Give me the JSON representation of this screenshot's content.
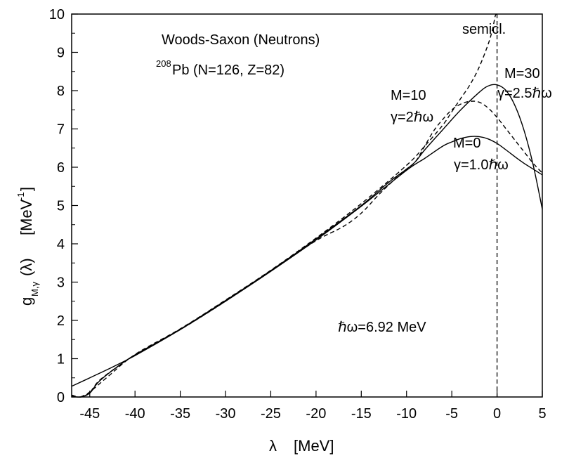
{
  "chart_data": {
    "type": "line",
    "xlabel_symbol": "λ",
    "xlabel_unit": "[MeV]",
    "ylabel_main": "g",
    "ylabel_sub": "M,γ",
    "ylabel_arg": "(λ)",
    "ylabel_unit": "[MeV",
    "ylabel_unit_exp": "-1",
    "ylabel_unit_close": "]",
    "xlim": [
      -47,
      5
    ],
    "ylim": [
      0,
      10
    ],
    "x_ticks": [
      -45,
      -40,
      -35,
      -30,
      -25,
      -20,
      -15,
      -10,
      -5,
      0,
      5
    ],
    "y_ticks": [
      0,
      1,
      2,
      3,
      4,
      5,
      6,
      7,
      8,
      9,
      10
    ],
    "x_tick_labels": [
      "-45",
      "-40",
      "-35",
      "-30",
      "-25",
      "-20",
      "-15",
      "-10",
      "-5",
      "0",
      "5"
    ],
    "y_tick_labels": [
      "0",
      "1",
      "2",
      "3",
      "4",
      "5",
      "6",
      "7",
      "8",
      "9",
      "10"
    ],
    "annotations": {
      "title_line1": "Woods-Saxon (Neutrons)",
      "title_line2_sup": "208",
      "title_line2": "Pb (N=126, Z=82)",
      "semicl": "semicl.",
      "m30": "M=30",
      "m30_gamma": "γ=2.5ℏω",
      "m10": "M=10",
      "m10_gamma": "γ=2ℏω",
      "m0": "M=0",
      "m0_gamma": "γ=1.0ℏω",
      "hw": "ℏω=6.92 MeV"
    },
    "series": [
      {
        "style": "solid",
        "points": [
          [
            -47,
            0.28
          ],
          [
            -45,
            0.5
          ],
          [
            -42.5,
            0.78
          ],
          [
            -40,
            1.08
          ],
          [
            -35,
            1.76
          ],
          [
            -30,
            2.5
          ],
          [
            -25,
            3.28
          ],
          [
            -20,
            4.1
          ],
          [
            -15,
            4.98
          ],
          [
            -10,
            5.92
          ],
          [
            -8,
            6.23
          ],
          [
            -6,
            6.55
          ],
          [
            -5,
            6.66
          ],
          [
            -4,
            6.75
          ],
          [
            -3,
            6.8
          ],
          [
            -2,
            6.8
          ],
          [
            -1,
            6.74
          ],
          [
            0,
            6.62
          ],
          [
            1,
            6.45
          ],
          [
            2,
            6.27
          ],
          [
            3,
            6.1
          ],
          [
            4,
            5.95
          ],
          [
            5,
            5.8
          ]
        ]
      },
      {
        "style": "solid",
        "points": [
          [
            -47,
            0.02
          ],
          [
            -46,
            0.0
          ],
          [
            -45,
            0.1
          ],
          [
            -44,
            0.4
          ],
          [
            -42,
            0.78
          ],
          [
            -40,
            1.1
          ],
          [
            -35,
            1.77
          ],
          [
            -30,
            2.52
          ],
          [
            -25,
            3.3
          ],
          [
            -20,
            4.13
          ],
          [
            -15,
            5.0
          ],
          [
            -12,
            5.6
          ],
          [
            -10,
            5.95
          ],
          [
            -9,
            6.15
          ],
          [
            -8,
            6.45
          ],
          [
            -6,
            6.98
          ],
          [
            -4,
            7.5
          ],
          [
            -2,
            7.95
          ],
          [
            -1,
            8.12
          ],
          [
            0,
            8.15
          ],
          [
            1,
            8.0
          ],
          [
            2,
            7.6
          ],
          [
            3,
            6.95
          ],
          [
            4,
            6.05
          ],
          [
            5,
            4.9
          ]
        ]
      },
      {
        "style": "dashed",
        "points": [
          [
            -47,
            0.05
          ],
          [
            -46,
            0.0
          ],
          [
            -45,
            0.12
          ],
          [
            -44,
            0.42
          ],
          [
            -42,
            0.78
          ],
          [
            -40,
            1.1
          ],
          [
            -35,
            1.76
          ],
          [
            -30,
            2.5
          ],
          [
            -25,
            3.3
          ],
          [
            -20,
            4.08
          ],
          [
            -17,
            4.45
          ],
          [
            -15,
            4.8
          ],
          [
            -13,
            5.3
          ],
          [
            -11,
            5.75
          ],
          [
            -10,
            5.95
          ],
          [
            -9,
            6.15
          ],
          [
            -8,
            6.55
          ],
          [
            -7,
            6.95
          ],
          [
            -6,
            7.25
          ],
          [
            -5,
            7.5
          ],
          [
            -4,
            7.65
          ],
          [
            -3,
            7.72
          ],
          [
            -2,
            7.7
          ],
          [
            -1,
            7.55
          ],
          [
            0,
            7.3
          ],
          [
            1,
            7.0
          ],
          [
            2,
            6.7
          ],
          [
            3,
            6.4
          ],
          [
            4,
            6.1
          ],
          [
            5,
            5.85
          ]
        ]
      },
      {
        "style": "dashed",
        "points": [
          [
            -46,
            0.0
          ],
          [
            -45,
            0.13
          ],
          [
            -43,
            0.53
          ],
          [
            -40,
            1.11
          ],
          [
            -35,
            1.78
          ],
          [
            -30,
            2.53
          ],
          [
            -25,
            3.31
          ],
          [
            -20,
            4.15
          ],
          [
            -15,
            5.05
          ],
          [
            -10,
            6.05
          ],
          [
            -8,
            6.55
          ],
          [
            -6,
            7.1
          ],
          [
            -5,
            7.45
          ],
          [
            -4,
            7.8
          ],
          [
            -3,
            8.15
          ],
          [
            -2,
            8.6
          ],
          [
            -1,
            9.2
          ],
          [
            -0.5,
            9.6
          ],
          [
            -0.2,
            9.95
          ],
          [
            0,
            10.0
          ]
        ]
      }
    ],
    "vertical_dashed_x": 0
  }
}
